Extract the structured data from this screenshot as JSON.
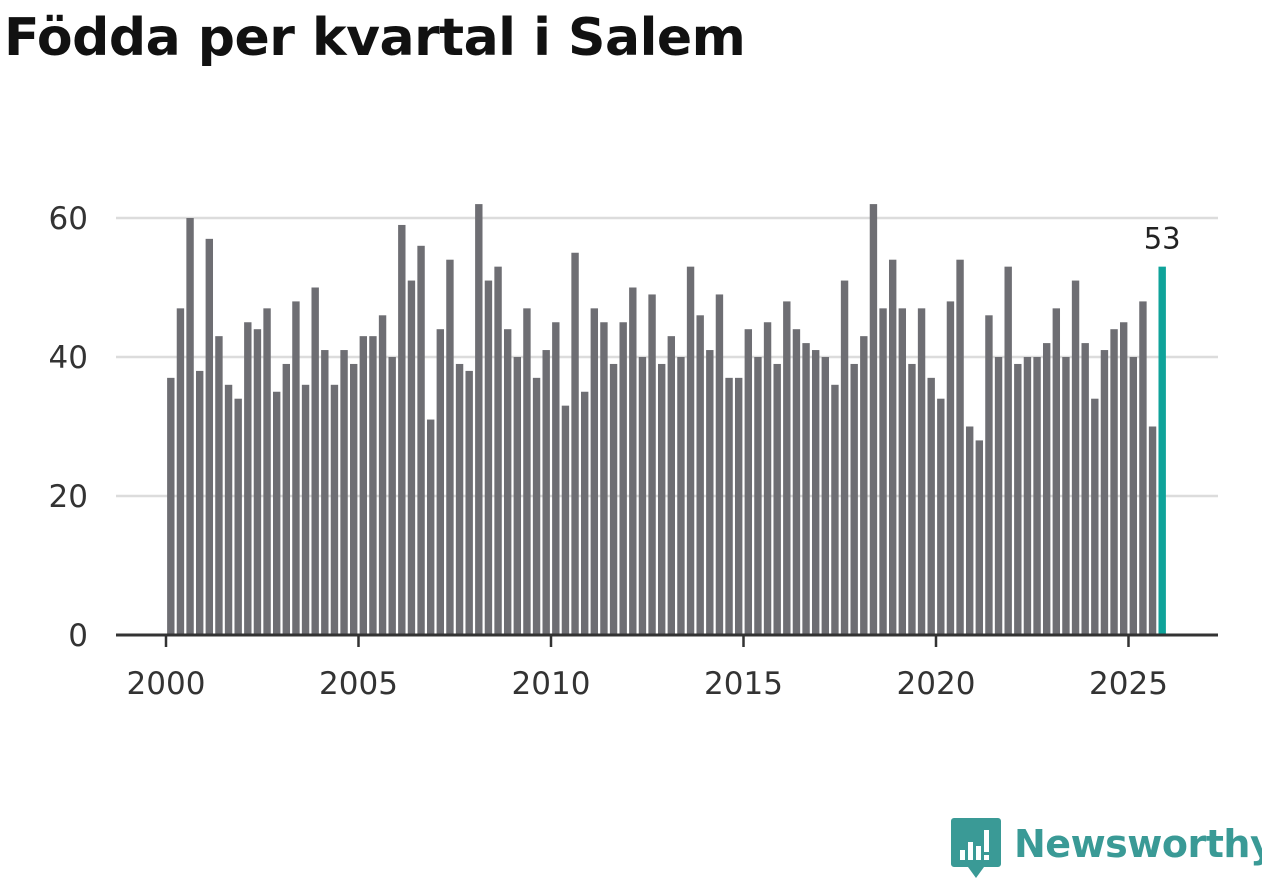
{
  "title": "Född­a per kvartal i Salem",
  "brand": {
    "name": "Newsworthy",
    "color": "#3a9a96",
    "icon": "newsworthy-logo-icon"
  },
  "chart_data": {
    "type": "bar",
    "title": "Födda per kvartal i Salem",
    "xlabel": "",
    "ylabel": "",
    "ylim": [
      0,
      65
    ],
    "yticks": [
      0,
      20,
      40,
      60
    ],
    "xticks": [
      2000,
      2005,
      2010,
      2015,
      2020,
      2025
    ],
    "grid": true,
    "legend": "none",
    "bar_color": "#6e6e73",
    "highlight_color": "#0fa39a",
    "highlight_label": "53",
    "quarters_start": "2000 Q1",
    "values": [
      37,
      47,
      60,
      38,
      57,
      43,
      36,
      34,
      45,
      44,
      47,
      35,
      39,
      48,
      36,
      50,
      41,
      36,
      41,
      39,
      43,
      43,
      46,
      40,
      59,
      51,
      56,
      31,
      44,
      54,
      39,
      38,
      62,
      51,
      53,
      44,
      40,
      47,
      37,
      41,
      45,
      33,
      55,
      35,
      47,
      45,
      39,
      45,
      50,
      40,
      49,
      39,
      43,
      40,
      53,
      46,
      41,
      49,
      37,
      37,
      44,
      40,
      45,
      39,
      48,
      44,
      42,
      41,
      40,
      36,
      51,
      39,
      43,
      62,
      47,
      54,
      47,
      39,
      47,
      37,
      34,
      48,
      54,
      30,
      28,
      46,
      40,
      53,
      39,
      40,
      40,
      42,
      47,
      40,
      51,
      42,
      34,
      41,
      44,
      45,
      40,
      48,
      30,
      53
    ]
  }
}
